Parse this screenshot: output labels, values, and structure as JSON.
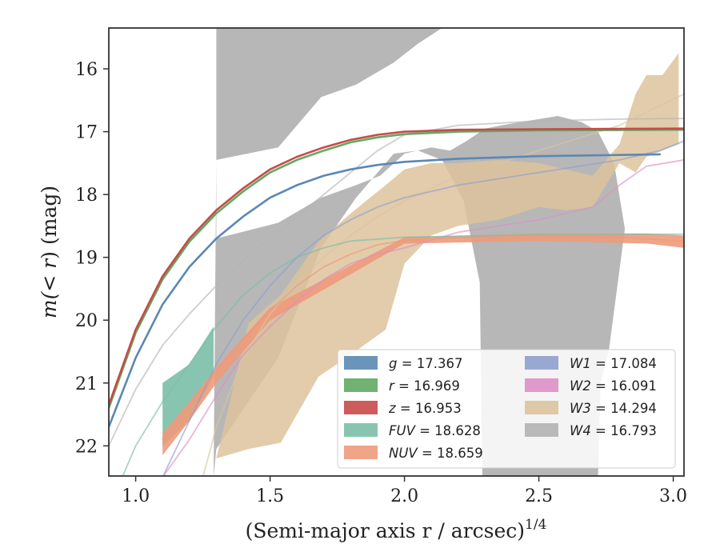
{
  "chart_data": {
    "type": "area",
    "xlabel": "(Semi-major axis r / arcsec)",
    "xlabel_exponent": "1/4",
    "ylabel_prefix": "m(",
    "ylabel_sym": "<",
    "ylabel_mid": " r",
    "ylabel_suffix": ") (mag)",
    "x_ticks": [
      1.0,
      1.5,
      2.0,
      2.5,
      3.0
    ],
    "x_tick_labels": [
      "1.0",
      "1.5",
      "2.0",
      "2.5",
      "3.0"
    ],
    "y_ticks": [
      16,
      17,
      18,
      19,
      20,
      21,
      22
    ],
    "y_tick_labels": [
      "16",
      "17",
      "18",
      "19",
      "20",
      "21",
      "22"
    ],
    "xlim": [
      0.9,
      3.04
    ],
    "ylim": [
      22.48,
      15.35
    ],
    "y_inverted": true,
    "legend_position": "lower-right",
    "series": [
      {
        "name": "g",
        "value": "17.367",
        "color": "#5b88b3",
        "points": [
          [
            0.9,
            21.7
          ],
          [
            1.0,
            20.6
          ],
          [
            1.1,
            19.75
          ],
          [
            1.2,
            19.15
          ],
          [
            1.3,
            18.7
          ],
          [
            1.4,
            18.35
          ],
          [
            1.5,
            18.05
          ],
          [
            1.6,
            17.85
          ],
          [
            1.7,
            17.7
          ],
          [
            1.8,
            17.6
          ],
          [
            1.9,
            17.53
          ],
          [
            2.0,
            17.48
          ],
          [
            2.2,
            17.43
          ],
          [
            2.5,
            17.39
          ],
          [
            2.8,
            17.37
          ],
          [
            2.95,
            17.36
          ]
        ]
      },
      {
        "name": "r",
        "value": "16.969",
        "color": "#62a963",
        "points": [
          [
            0.9,
            21.4
          ],
          [
            1.0,
            20.2
          ],
          [
            1.1,
            19.35
          ],
          [
            1.2,
            18.75
          ],
          [
            1.3,
            18.3
          ],
          [
            1.4,
            17.95
          ],
          [
            1.5,
            17.65
          ],
          [
            1.6,
            17.45
          ],
          [
            1.7,
            17.3
          ],
          [
            1.8,
            17.17
          ],
          [
            1.9,
            17.09
          ],
          [
            2.0,
            17.04
          ],
          [
            2.2,
            17.0
          ],
          [
            2.5,
            16.98
          ],
          [
            3.04,
            16.97
          ]
        ]
      },
      {
        "name": "z",
        "value": "16.953",
        "color": "#c84a4a",
        "points": [
          [
            0.9,
            21.35
          ],
          [
            1.0,
            20.15
          ],
          [
            1.1,
            19.3
          ],
          [
            1.2,
            18.7
          ],
          [
            1.3,
            18.25
          ],
          [
            1.4,
            17.9
          ],
          [
            1.5,
            17.6
          ],
          [
            1.6,
            17.4
          ],
          [
            1.7,
            17.25
          ],
          [
            1.8,
            17.13
          ],
          [
            1.9,
            17.05
          ],
          [
            2.0,
            17.0
          ],
          [
            2.2,
            16.97
          ],
          [
            2.5,
            16.96
          ],
          [
            3.04,
            16.95
          ]
        ]
      },
      {
        "name": "FUV",
        "value": "18.628",
        "color": "#7bbfa8",
        "points": [
          [
            0.95,
            22.5
          ],
          [
            1.0,
            22.0
          ],
          [
            1.1,
            21.3
          ],
          [
            1.2,
            20.7
          ],
          [
            1.3,
            20.1
          ],
          [
            1.4,
            19.6
          ],
          [
            1.5,
            19.25
          ],
          [
            1.6,
            19.0
          ],
          [
            1.7,
            18.85
          ],
          [
            1.8,
            18.74
          ],
          [
            2.0,
            18.68
          ],
          [
            2.5,
            18.64
          ],
          [
            3.04,
            18.63
          ]
        ],
        "band_x": [
          1.1,
          1.2,
          1.29
        ],
        "band_low": [
          21.0,
          20.7,
          20.1
        ],
        "band_high": [
          22.0,
          21.6,
          20.9
        ]
      },
      {
        "name": "NUV",
        "value": "18.659",
        "color": "#ee9a7b",
        "points": [
          [
            1.1,
            21.9
          ],
          [
            1.2,
            21.35
          ],
          [
            1.3,
            20.8
          ],
          [
            1.4,
            20.3
          ],
          [
            1.5,
            19.85
          ],
          [
            1.6,
            19.45
          ],
          [
            1.7,
            19.15
          ],
          [
            1.8,
            18.95
          ],
          [
            1.9,
            18.8
          ],
          [
            2.0,
            18.73
          ],
          [
            2.2,
            18.69
          ],
          [
            2.5,
            18.67
          ],
          [
            2.8,
            18.68
          ],
          [
            3.04,
            18.74
          ]
        ],
        "band_x": [
          1.1,
          1.2,
          1.3,
          1.5,
          2.0,
          2.5,
          2.9,
          3.04
        ],
        "band_low": [
          21.8,
          21.3,
          20.75,
          19.8,
          18.68,
          18.62,
          18.62,
          18.65
        ],
        "band_high": [
          22.15,
          21.6,
          21.0,
          20.0,
          18.78,
          18.74,
          18.78,
          18.85
        ]
      },
      {
        "name": "W1",
        "value": "17.084",
        "color": "#8fa0cc",
        "points": [
          [
            1.1,
            22.5
          ],
          [
            1.2,
            21.6
          ],
          [
            1.3,
            20.7
          ],
          [
            1.4,
            20.0
          ],
          [
            1.5,
            19.45
          ],
          [
            1.6,
            19.0
          ],
          [
            1.7,
            18.65
          ],
          [
            1.8,
            18.4
          ],
          [
            1.9,
            18.2
          ],
          [
            2.0,
            18.05
          ],
          [
            2.2,
            17.85
          ],
          [
            2.5,
            17.65
          ],
          [
            2.8,
            17.45
          ],
          [
            2.95,
            17.3
          ],
          [
            3.04,
            17.15
          ]
        ]
      },
      {
        "name": "W2",
        "value": "16.091",
        "color": "#dd8fc5",
        "points": [
          [
            1.1,
            22.5
          ],
          [
            1.2,
            21.9
          ],
          [
            1.3,
            21.2
          ],
          [
            1.4,
            20.55
          ],
          [
            1.5,
            20.1
          ],
          [
            1.6,
            19.7
          ],
          [
            1.7,
            19.35
          ],
          [
            1.8,
            19.1
          ],
          [
            1.9,
            18.95
          ],
          [
            2.0,
            18.85
          ],
          [
            2.2,
            18.6
          ],
          [
            2.5,
            18.4
          ],
          [
            2.7,
            18.2
          ],
          [
            2.8,
            17.85
          ],
          [
            2.9,
            17.55
          ],
          [
            3.04,
            17.45
          ]
        ]
      },
      {
        "name": "W3",
        "value": "14.294",
        "color": "#ddc39c",
        "points": [
          [
            1.25,
            22.5
          ],
          [
            1.3,
            21.7
          ],
          [
            1.4,
            20.6
          ],
          [
            1.5,
            19.9
          ],
          [
            1.6,
            19.4
          ],
          [
            1.7,
            19.0
          ],
          [
            1.8,
            18.65
          ],
          [
            1.9,
            18.35
          ],
          [
            2.0,
            18.1
          ],
          [
            2.2,
            17.7
          ],
          [
            2.5,
            17.3
          ],
          [
            2.8,
            16.9
          ],
          [
            3.04,
            16.4
          ]
        ],
        "band_x": [
          1.3,
          1.42,
          1.54,
          1.68,
          1.8,
          1.93,
          2.0,
          2.1,
          2.2,
          2.35,
          2.5,
          2.6,
          2.7,
          2.8,
          2.86,
          2.9,
          2.96,
          3.02
        ],
        "band_low": [
          22.2,
          22.05,
          21.95,
          20.9,
          20.55,
          20.15,
          19.1,
          18.65,
          18.5,
          18.4,
          18.2,
          18.25,
          18.2,
          17.5,
          17.65,
          17.4,
          17.3,
          17.2
        ],
        "band_high": [
          22.2,
          20.05,
          19.6,
          18.75,
          18.3,
          17.85,
          17.6,
          17.5,
          17.5,
          17.45,
          17.5,
          17.6,
          17.7,
          17.2,
          16.4,
          16.1,
          16.1,
          15.75
        ]
      },
      {
        "name": "W4",
        "value": "16.793",
        "color": "#b3b3b3",
        "points": [
          [
            0.9,
            22.0
          ],
          [
            1.0,
            21.1
          ],
          [
            1.1,
            20.4
          ],
          [
            1.2,
            19.9
          ],
          [
            1.3,
            19.45
          ],
          [
            1.4,
            19.05
          ],
          [
            1.5,
            18.7
          ],
          [
            1.6,
            18.35
          ],
          [
            1.7,
            18.0
          ],
          [
            1.8,
            17.65
          ],
          [
            1.9,
            17.3
          ],
          [
            2.0,
            17.05
          ],
          [
            2.2,
            16.9
          ],
          [
            2.5,
            16.83
          ],
          [
            2.8,
            16.8
          ],
          [
            3.04,
            16.79
          ]
        ],
        "band_x": [
          1.29,
          1.3,
          1.53,
          1.69,
          1.82,
          1.96,
          2.05,
          2.14,
          2.22,
          2.28,
          2.29,
          2.72,
          2.73,
          2.76,
          2.82,
          2.82,
          2.78,
          2.72,
          2.66,
          2.57,
          2.5,
          2.36,
          2.3,
          2.23,
          2.17,
          2.1,
          2.0,
          1.91,
          1.82,
          1.69,
          1.53,
          1.3
        ],
        "band_low": [
          22.5,
          22.05,
          20.6,
          18.85,
          18.05,
          17.35,
          17.3,
          17.45,
          18.1,
          19.4,
          22.5,
          22.5,
          21.0,
          20.5,
          18.55,
          18.55,
          17.5,
          17.0,
          16.85,
          16.75,
          16.8,
          16.9,
          16.95,
          17.15,
          17.3,
          17.25,
          17.35,
          17.7,
          17.85,
          18.05,
          18.45,
          18.7
        ],
        "band_high": [
          22.5,
          17.45,
          17.25,
          16.45,
          16.25,
          15.9,
          15.6,
          15.35,
          15.35,
          15.35,
          15.35,
          15.35,
          15.35,
          15.35,
          15.35,
          15.35,
          15.35,
          15.35,
          15.35,
          15.35,
          15.35,
          15.35,
          15.35,
          15.35,
          15.35,
          15.35,
          15.35,
          15.35,
          15.35,
          15.35,
          15.35,
          15.35
        ]
      }
    ]
  }
}
